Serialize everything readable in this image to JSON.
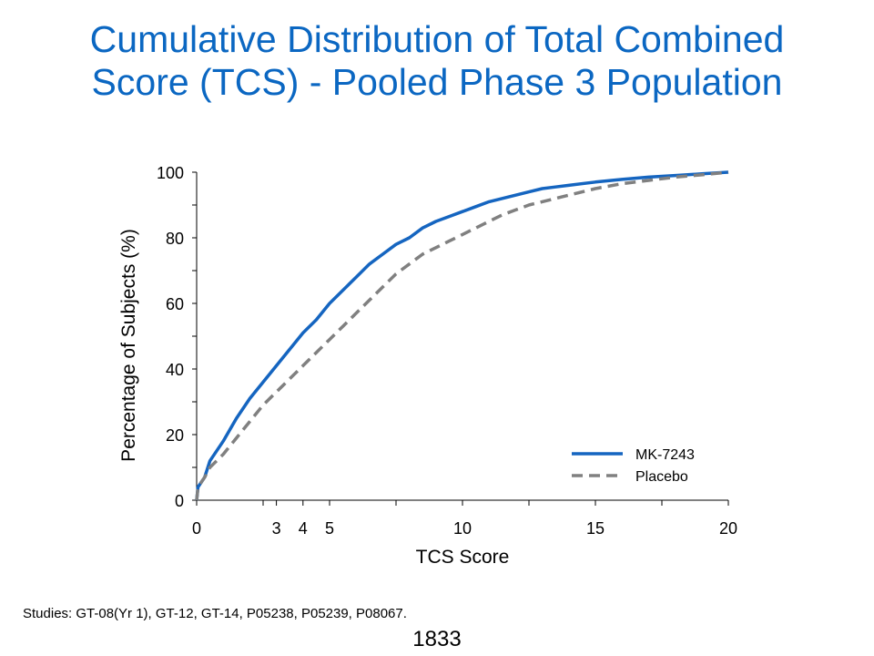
{
  "slide": {
    "title_line1": "Cumulative Distribution of Total Combined",
    "title_line2": "Score (TCS) - Pooled Phase 3 Population",
    "footnote": "Studies: GT-08(Yr 1), GT-12, GT-14, P05238, P05239, P08067.",
    "page_number": "1833"
  },
  "colors": {
    "title": "#0b67c2",
    "mk7243": "#1565c0",
    "placebo": "#808080"
  },
  "chart_data": {
    "type": "line",
    "title": "",
    "xlabel": "TCS Score",
    "ylabel": "Percentage of Subjects (%)",
    "xlim": [
      0,
      20
    ],
    "ylim": [
      0,
      100
    ],
    "x_ticks_labeled": [
      0,
      3,
      4,
      5,
      10,
      15,
      20
    ],
    "x_ticks_minor": [
      0,
      2.5,
      3,
      4,
      5,
      7.5,
      10,
      12.5,
      15,
      17.5,
      20
    ],
    "y_ticks_labeled": [
      0,
      20,
      40,
      60,
      80,
      100
    ],
    "y_ticks_minor": [
      0,
      10,
      20,
      30,
      40,
      50,
      60,
      70,
      80,
      90,
      100
    ],
    "grid": false,
    "legend_position": "bottom-right",
    "series": [
      {
        "name": "MK-7243",
        "style": "solid",
        "x": [
          0,
          0.05,
          0.3,
          0.5,
          1,
          1.5,
          2,
          2.5,
          3,
          3.5,
          4,
          4.5,
          5,
          5.5,
          6,
          6.5,
          7,
          7.5,
          8,
          8.5,
          9,
          9.5,
          10,
          10.5,
          11,
          11.5,
          12,
          12.5,
          13,
          13.5,
          14,
          15,
          16,
          17,
          18,
          19,
          20
        ],
        "y": [
          0,
          4,
          7,
          12,
          18,
          25,
          31,
          36,
          41,
          46,
          51,
          55,
          60,
          64,
          68,
          72,
          75,
          78,
          80,
          83,
          85,
          86.5,
          88,
          89.5,
          91,
          92,
          93,
          94,
          95,
          95.5,
          96,
          97,
          97.8,
          98.5,
          99,
          99.5,
          100
        ]
      },
      {
        "name": "Placebo",
        "style": "dashed",
        "x": [
          0,
          0.05,
          0.3,
          0.5,
          1,
          1.5,
          2,
          2.5,
          3,
          3.5,
          4,
          4.5,
          5,
          5.5,
          6,
          6.5,
          7,
          7.5,
          8,
          8.5,
          9,
          9.5,
          10,
          10.5,
          11,
          11.5,
          12,
          12.5,
          13,
          13.5,
          14,
          15,
          16,
          17,
          18,
          19,
          20
        ],
        "y": [
          0,
          4,
          7,
          10,
          14,
          19,
          24,
          29,
          33,
          37,
          41,
          45,
          49,
          53,
          57,
          61,
          65,
          69,
          72,
          75,
          77,
          79,
          81,
          83,
          85,
          87,
          88.5,
          90,
          91,
          92,
          93,
          95,
          96.5,
          97.5,
          98.5,
          99.2,
          100
        ]
      }
    ]
  }
}
